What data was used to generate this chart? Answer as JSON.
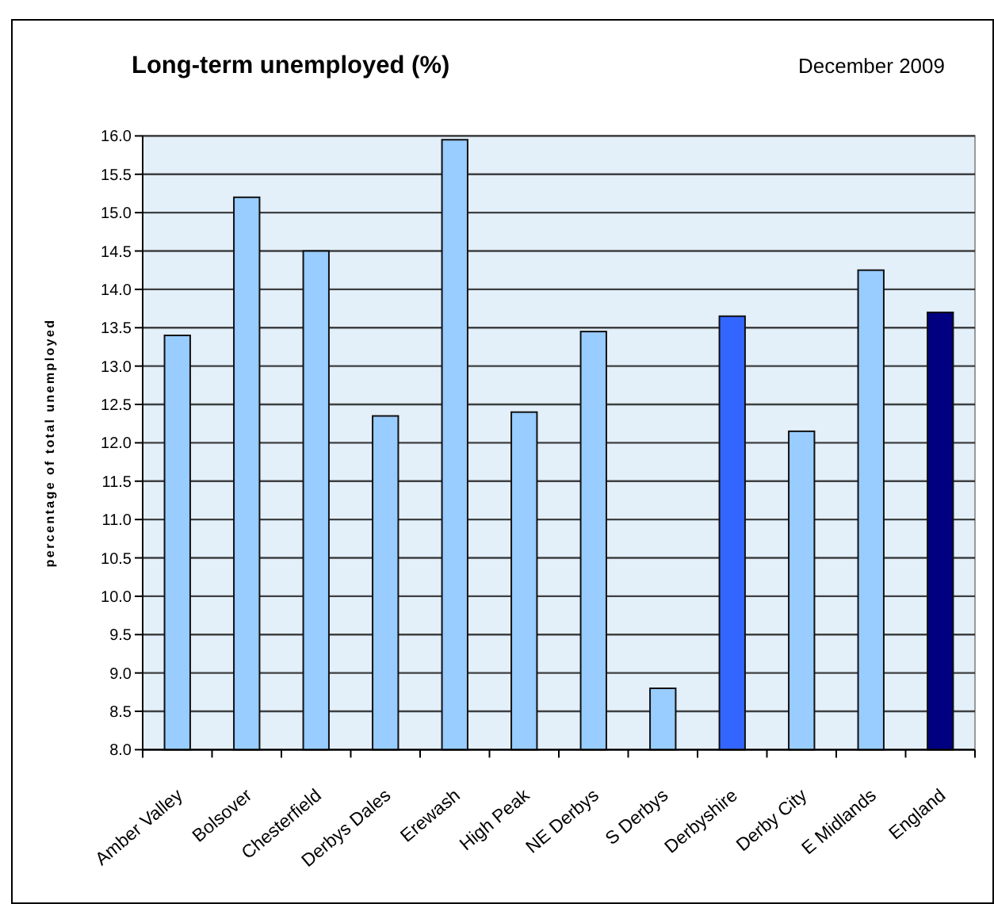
{
  "chart_data": {
    "type": "bar",
    "title": "Long-term unemployed (%)",
    "subtitle": "December 2009",
    "ylabel": "percentage of total unemployed",
    "categories": [
      "Amber Valley",
      "Bolsover",
      "Chesterfield",
      "Derbys Dales",
      "Erewash",
      "High Peak",
      "NE Derbys",
      "S Derbys",
      "Derbyshire",
      "Derby City",
      "E Midlands",
      "England"
    ],
    "values": [
      13.4,
      15.2,
      14.5,
      12.35,
      15.95,
      12.4,
      13.45,
      8.8,
      13.65,
      12.15,
      14.25,
      13.7
    ],
    "colors": [
      "#99ccff",
      "#99ccff",
      "#99ccff",
      "#99ccff",
      "#99ccff",
      "#99ccff",
      "#99ccff",
      "#99ccff",
      "#3366ff",
      "#99ccff",
      "#99ccff",
      "#000080"
    ],
    "ylim": [
      8,
      16
    ],
    "yticks": [
      {
        "value": 8,
        "label": "8.0"
      },
      {
        "value": 8.5,
        "label": "8.5"
      },
      {
        "value": 9,
        "label": "9.0"
      },
      {
        "value": 9.5,
        "label": "9.5"
      },
      {
        "value": 10,
        "label": "10.0"
      },
      {
        "value": 10.5,
        "label": "10.5"
      },
      {
        "value": 11,
        "label": "11.0"
      },
      {
        "value": 11.5,
        "label": "11.5"
      },
      {
        "value": 12,
        "label": "12.0"
      },
      {
        "value": 12.5,
        "label": "12.5"
      },
      {
        "value": 13,
        "label": "13.0"
      },
      {
        "value": 13.5,
        "label": "13.5"
      },
      {
        "value": 14,
        "label": "14.0"
      },
      {
        "value": 14.5,
        "label": "14.5"
      },
      {
        "value": 15,
        "label": "15.0"
      },
      {
        "value": 15.5,
        "label": "15.5"
      },
      {
        "value": 16,
        "label": "16.0"
      }
    ],
    "grid": "y"
  }
}
